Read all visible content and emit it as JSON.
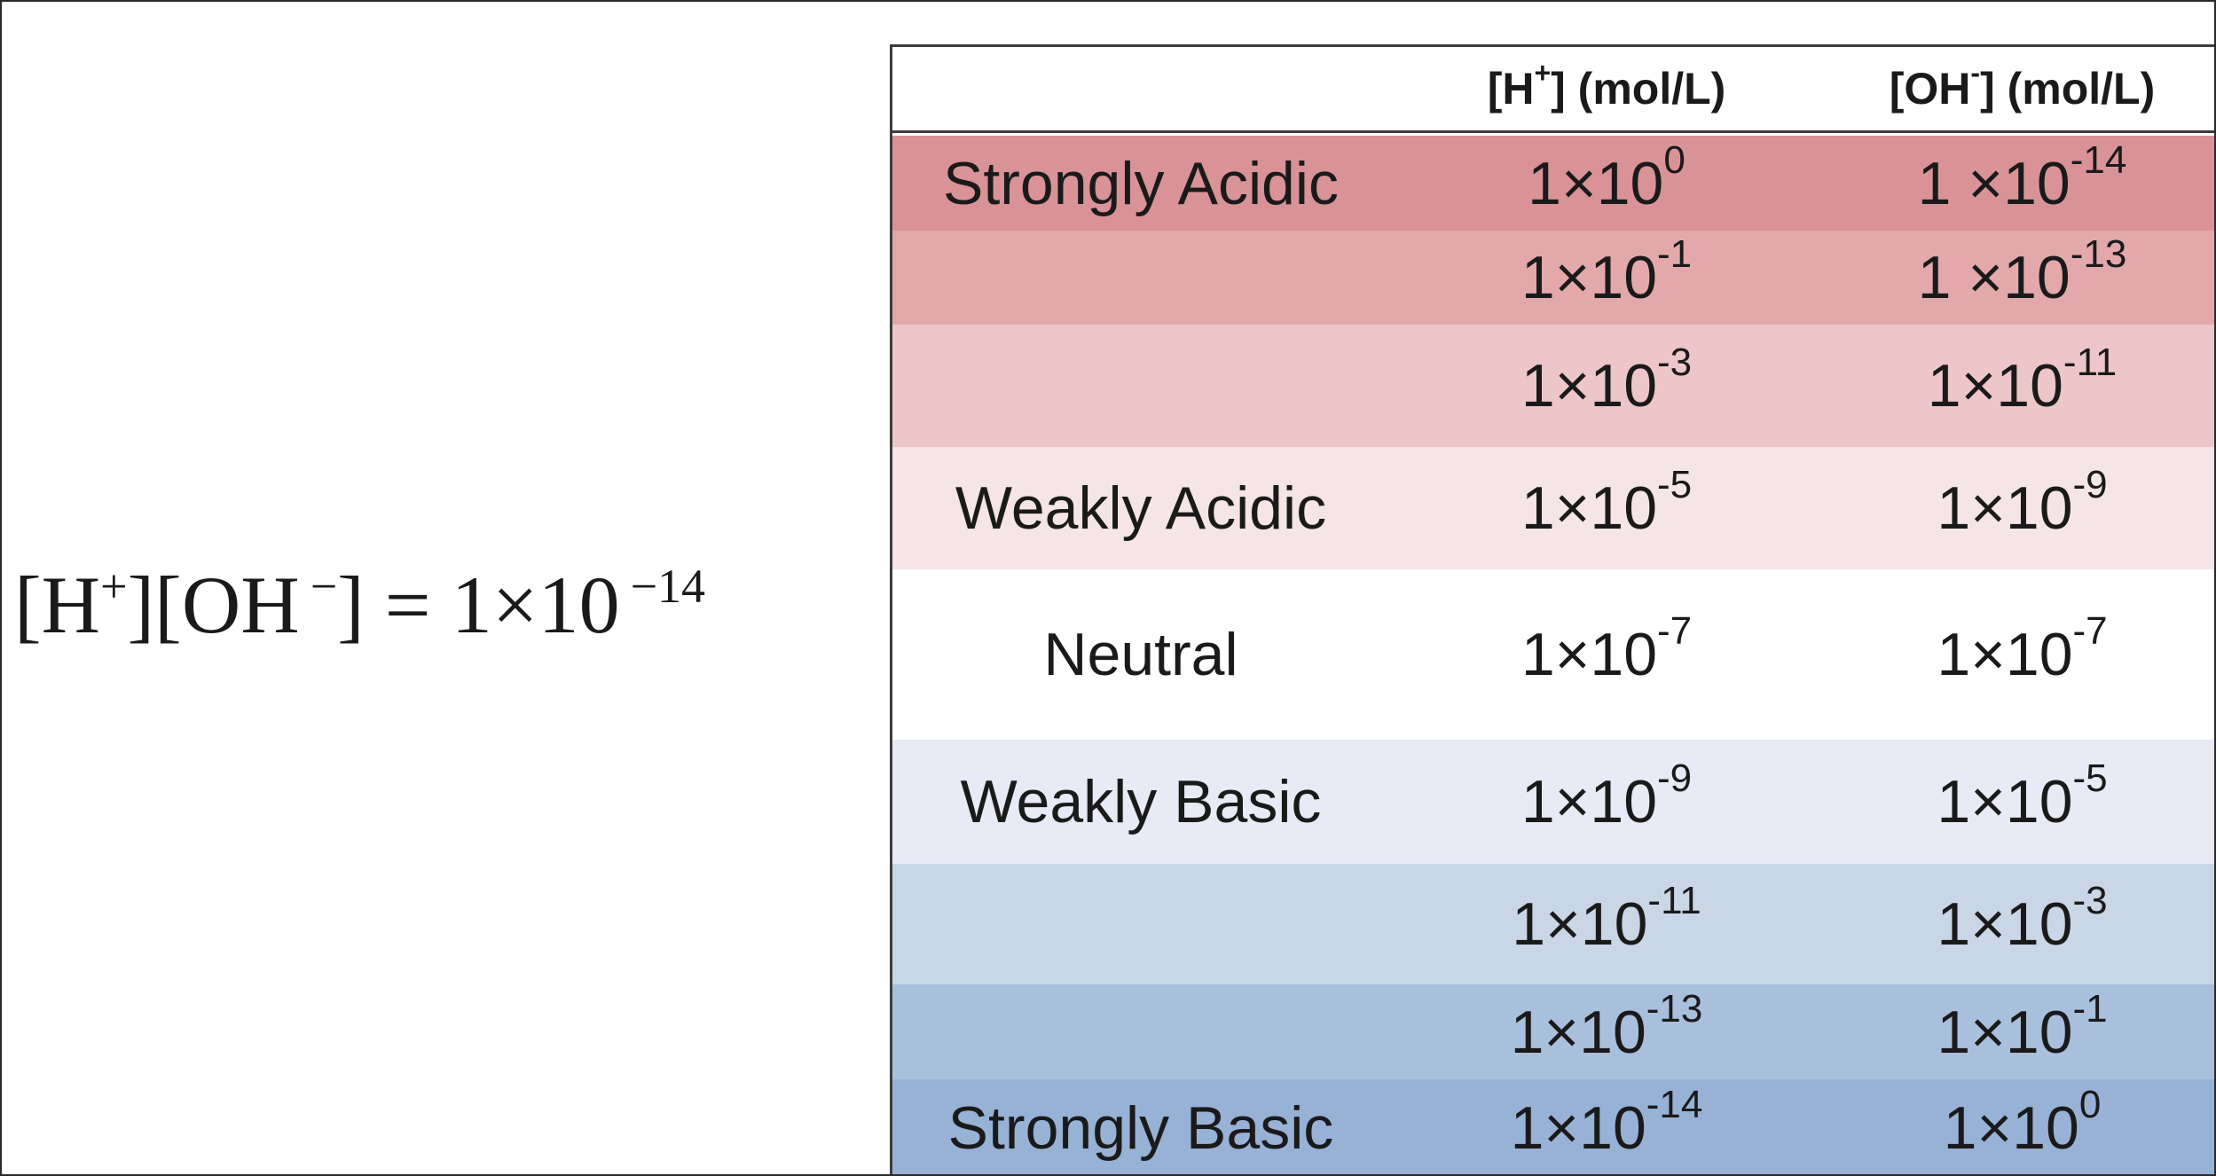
{
  "equation": {
    "left": "[H",
    "h_sup": "+",
    "mid": "][OH",
    "oh_sup": "−",
    "right": "] = 1×10",
    "exp": "−14"
  },
  "table": {
    "headers": {
      "label": "",
      "h": {
        "base": "[H",
        "sup": "+",
        "rest": "] (mol/L)"
      },
      "oh": {
        "base": "[OH",
        "sup": "-",
        "rest": "] (mol/L)"
      }
    },
    "rows": [
      {
        "label": "Strongly Acidic",
        "h_base": "1×10",
        "h_exp": "0",
        "oh_base": "1 ×10",
        "oh_exp": "-14",
        "color": "#d99396"
      },
      {
        "label": "",
        "h_base": "1×10",
        "h_exp": "-1",
        "oh_base": "1 ×10",
        "oh_exp": "-13",
        "color": "#e3a9aa"
      },
      {
        "label": "",
        "h_base": "1×10",
        "h_exp": "-3",
        "oh_base": "1×10",
        "oh_exp": "-11",
        "color": "#ecc6c8"
      },
      {
        "label": "Weakly Acidic",
        "h_base": "1×10",
        "h_exp": "-5",
        "oh_base": "1×10",
        "oh_exp": "-9",
        "color": "#f6e5e6"
      },
      {
        "label": "Neutral",
        "h_base": "1×10",
        "h_exp": "-7",
        "oh_base": "1×10",
        "oh_exp": "-7",
        "color": "#ffffff"
      },
      {
        "label": "Weakly Basic",
        "h_base": "1×10",
        "h_exp": "-9",
        "oh_base": "1×10",
        "oh_exp": "-5",
        "color": "#e8eaf5"
      },
      {
        "label": "",
        "h_base": "1×10",
        "h_exp": "-11",
        "oh_base": "1×10",
        "oh_exp": "-3",
        "color": "#c8d6e6"
      },
      {
        "label": "",
        "h_base": "1×10",
        "h_exp": "-13",
        "oh_base": "1×10",
        "oh_exp": "-1",
        "color": "#a9c0dc"
      },
      {
        "label": "Strongly Basic",
        "h_base": "1×10",
        "h_exp": "-14",
        "oh_base": "1×10",
        "oh_exp": "0",
        "color": "#98b2d6"
      }
    ]
  }
}
